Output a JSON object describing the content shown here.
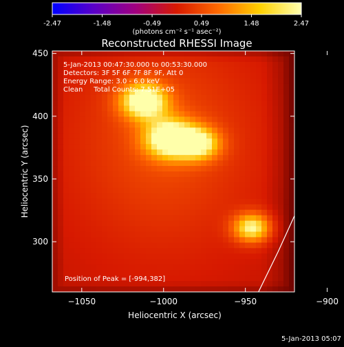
{
  "chart_data": {
    "type": "heatmap",
    "title": "Reconstructed RHESSI Image",
    "xlabel": "Heliocentric X (arcsec)",
    "ylabel": "Heliocentric Y (arcsec)",
    "xlim": [
      -1068,
      -920
    ],
    "ylim": [
      260,
      452
    ],
    "x_ticks": [
      -1050,
      -1000,
      -950,
      -900
    ],
    "y_ticks": [
      300,
      350,
      400,
      450
    ],
    "colorbar": {
      "unit": "(photons cm⁻² s⁻¹ asec⁻²)",
      "ticks": [
        "-2.47",
        "-1.48",
        "-0.49",
        "0.49",
        "1.48",
        "2.47"
      ],
      "range": [
        -2.47,
        2.47
      ],
      "colormap": [
        "#0000ff",
        "#5a00c8",
        "#a00080",
        "#d81a00",
        "#ff6a00",
        "#ffd000",
        "#ffffb0"
      ]
    },
    "annotations": [
      "5-Jan-2013 00:47:30.000 to 00:53:30.000",
      "Detectors: 3F 5F 6F 7F 8F 9F, Att 0",
      "Energy Range: 3.0 - 6.0 keV",
      "Clean     Total Counts: 7.51E+05"
    ],
    "peak_label": "Position of Peak = [-994,382]",
    "sources": [
      {
        "x": -1012,
        "y": 412,
        "sigma": 10,
        "amp": 1.0
      },
      {
        "x": -996,
        "y": 382,
        "sigma": 11,
        "amp": 1.0
      },
      {
        "x": -978,
        "y": 378,
        "sigma": 9,
        "amp": 0.75
      },
      {
        "x": -946,
        "y": 311,
        "sigma": 8,
        "amp": 0.85
      }
    ],
    "limb_curve": [
      [
        -942,
        260
      ],
      [
        -930,
        292
      ],
      [
        -915,
        335
      ],
      [
        -900,
        375
      ],
      [
        -885,
        410
      ],
      [
        -872,
        432
      ]
    ],
    "date_stamp": "5-Jan-2013 05:07"
  }
}
